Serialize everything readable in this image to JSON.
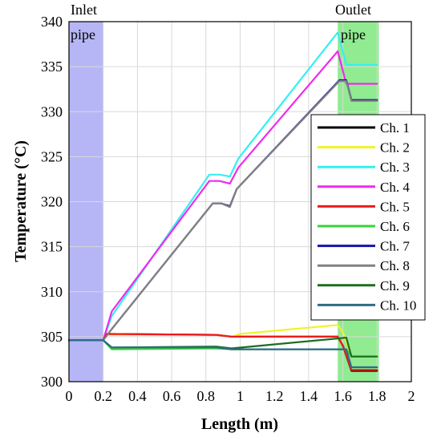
{
  "chart_data": {
    "type": "line",
    "title": "",
    "xlabel": "Length (m)",
    "ylabel": "Temperature (°C)",
    "xlim": [
      0,
      2
    ],
    "ylim": [
      300,
      340
    ],
    "xticks": [
      "0",
      "0.2",
      "0.4",
      "0.6",
      "0.8",
      "1",
      "1.2",
      "1.4",
      "1.6",
      "1.8",
      "2"
    ],
    "yticks": [
      "300",
      "305",
      "310",
      "315",
      "320",
      "325",
      "330",
      "335",
      "340"
    ],
    "grid": true,
    "legend_position": "right",
    "regions": [
      {
        "label_line1": "Inlet",
        "label_line2": "pipe",
        "x_range": [
          0,
          0.2
        ],
        "color": "#a9a9f5"
      },
      {
        "label_line1": "Outlet",
        "label_line2": "pipe",
        "x_range": [
          1.57,
          1.81
        ],
        "color": "#7ee87e"
      }
    ],
    "series": [
      {
        "name": "Ch. 1",
        "color": "#000000",
        "x": [
          0,
          0.2,
          0.22,
          0.86,
          0.95,
          1.0,
          1.57,
          1.6,
          1.65,
          1.8
        ],
        "y": [
          304.6,
          304.6,
          305.3,
          305.2,
          305.0,
          305.0,
          305.0,
          304.0,
          301.2,
          301.2
        ]
      },
      {
        "name": "Ch. 2",
        "color": "#f2f22a",
        "x": [
          0,
          0.2,
          0.22,
          0.86,
          0.95,
          1.0,
          1.57,
          1.6,
          1.65,
          1.8
        ],
        "y": [
          304.6,
          304.6,
          305.2,
          305.2,
          305.0,
          305.3,
          306.3,
          305.5,
          302.8,
          302.8
        ]
      },
      {
        "name": "Ch. 3",
        "color": "#33f0f0",
        "x": [
          0,
          0.2,
          0.25,
          0.82,
          0.88,
          0.94,
          0.99,
          1.57,
          1.62,
          1.8
        ],
        "y": [
          304.6,
          304.6,
          307.3,
          323.0,
          323.0,
          322.8,
          324.8,
          338.8,
          335.2,
          335.2
        ]
      },
      {
        "name": "Ch. 4",
        "color": "#ee2bee",
        "x": [
          0,
          0.2,
          0.25,
          0.82,
          0.88,
          0.94,
          0.99,
          1.57,
          1.62,
          1.8
        ],
        "y": [
          304.6,
          304.6,
          307.8,
          322.3,
          322.3,
          322.0,
          323.8,
          336.7,
          333.1,
          333.1
        ]
      },
      {
        "name": "Ch. 5",
        "color": "#ee1a1a",
        "x": [
          0,
          0.2,
          0.22,
          0.86,
          0.95,
          1.0,
          1.57,
          1.6,
          1.65,
          1.8
        ],
        "y": [
          304.6,
          304.6,
          305.3,
          305.2,
          305.0,
          305.0,
          305.0,
          304.0,
          301.3,
          301.3
        ]
      },
      {
        "name": "Ch. 6",
        "color": "#3ad43a",
        "x": [
          0,
          0.2,
          0.25,
          0.86,
          0.95,
          1.57,
          1.62,
          1.65,
          1.8
        ],
        "y": [
          304.6,
          304.6,
          303.6,
          303.7,
          303.6,
          303.6,
          303.6,
          302.8,
          302.8
        ]
      },
      {
        "name": "Ch. 7",
        "color": "#1515a8",
        "x": [
          0,
          0.2,
          0.24,
          0.84,
          0.89,
          0.94,
          0.98,
          1.58,
          1.62,
          1.65,
          1.8
        ],
        "y": [
          304.6,
          304.6,
          305.6,
          319.8,
          319.8,
          319.5,
          321.4,
          333.5,
          333.5,
          331.3,
          331.3
        ]
      },
      {
        "name": "Ch. 8",
        "color": "#808080",
        "x": [
          0,
          0.2,
          0.24,
          0.84,
          0.89,
          0.94,
          0.98,
          1.58,
          1.62,
          1.65,
          1.8
        ],
        "y": [
          304.6,
          304.6,
          305.6,
          319.8,
          319.8,
          319.4,
          321.4,
          333.4,
          333.4,
          331.2,
          331.2
        ]
      },
      {
        "name": "Ch. 9",
        "color": "#1d6e1d",
        "x": [
          0,
          0.2,
          0.25,
          0.86,
          0.95,
          1.57,
          1.62,
          1.65,
          1.8
        ],
        "y": [
          304.6,
          304.6,
          303.8,
          303.9,
          303.7,
          304.8,
          304.9,
          302.8,
          302.8
        ]
      },
      {
        "name": "Ch. 10",
        "color": "#2f6c87",
        "x": [
          0,
          0.2,
          0.25,
          0.86,
          0.95,
          1.57,
          1.62,
          1.65,
          1.8
        ],
        "y": [
          304.6,
          304.6,
          303.8,
          303.8,
          303.6,
          303.6,
          303.6,
          301.6,
          301.6
        ]
      }
    ]
  }
}
